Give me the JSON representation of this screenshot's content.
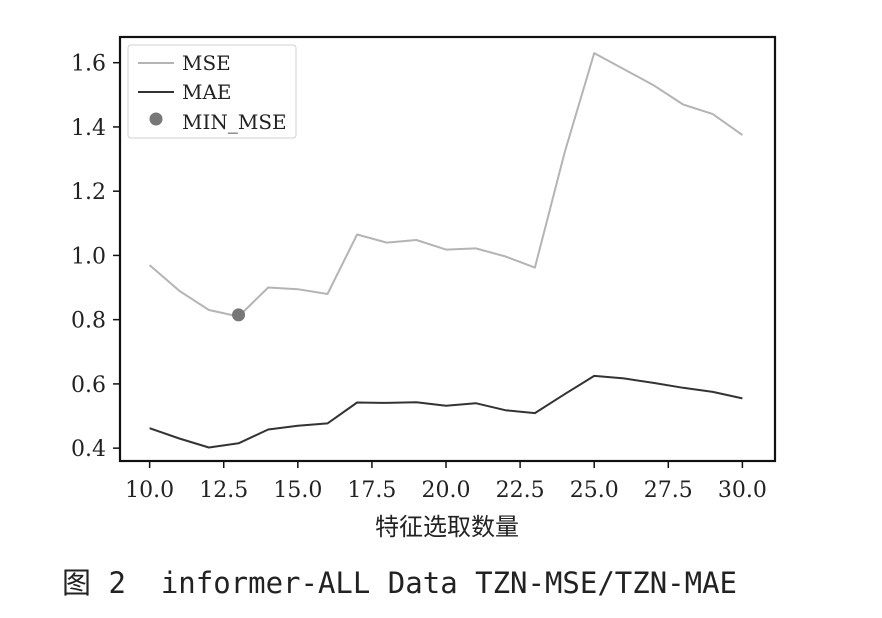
{
  "chart_data": {
    "type": "line",
    "x": [
      10,
      11,
      12,
      13,
      14,
      15,
      16,
      17,
      18,
      19,
      20,
      21,
      22,
      23,
      24,
      25,
      26,
      27,
      28,
      29,
      30
    ],
    "series": [
      {
        "name": "MSE",
        "color": "#b4b4b4",
        "values": [
          0.97,
          0.89,
          0.83,
          0.81,
          0.9,
          0.895,
          0.88,
          1.065,
          1.04,
          1.048,
          1.018,
          1.022,
          0.997,
          0.962,
          1.32,
          1.63,
          1.58,
          1.53,
          1.47,
          1.44,
          1.375
        ]
      },
      {
        "name": "MAE",
        "color": "#333333",
        "values": [
          0.462,
          0.43,
          0.402,
          0.415,
          0.458,
          0.47,
          0.477,
          0.542,
          0.541,
          0.543,
          0.532,
          0.54,
          0.518,
          0.509,
          0.568,
          0.625,
          0.617,
          0.603,
          0.588,
          0.575,
          0.555
        ]
      }
    ],
    "min_point": {
      "name": "MIN_MSE",
      "x": 13,
      "y": 0.815,
      "color": "#777777"
    },
    "xlabel": "特征选取数量",
    "ylabel": "",
    "xlim": [
      9,
      31.1
    ],
    "ylim": [
      0.36,
      1.68
    ],
    "xticks": [
      10,
      12.5,
      15,
      17.5,
      20,
      22.5,
      25,
      27.5,
      30
    ],
    "xtick_labels": [
      "10.0",
      "12.5",
      "15.0",
      "17.5",
      "20.0",
      "22.5",
      "25.0",
      "27.5",
      "30.0"
    ],
    "yticks": [
      0.4,
      0.6,
      0.8,
      1.0,
      1.2,
      1.4,
      1.6
    ],
    "ytick_labels": [
      "0.4",
      "0.6",
      "0.8",
      "1.0",
      "1.2",
      "1.4",
      "1.6"
    ],
    "legend_placement": "top-left",
    "grid": false
  },
  "caption": "图 2  informer-ALL Data TZN-MSE/TZN-MAE"
}
